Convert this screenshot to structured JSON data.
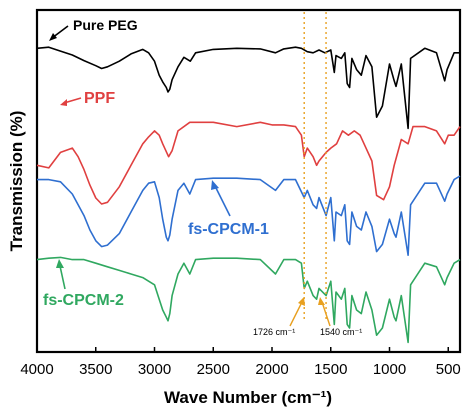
{
  "chart_data": {
    "type": "line",
    "title": "",
    "xlabel": "Wave Number (cm⁻¹)",
    "ylabel": "Transmission (%)",
    "xlim": [
      4000,
      400
    ],
    "x_reversed": true,
    "y_ticks_shown": false,
    "grid": false,
    "x_ticks": [
      4000,
      3500,
      3000,
      2500,
      2000,
      1500,
      1000,
      500
    ],
    "x_tick_labels": [
      "4000",
      "3500",
      "3000",
      "2500",
      "2000",
      "1500",
      "1000",
      "500"
    ],
    "series": [
      {
        "name": "Pure PEG",
        "color": "#000000",
        "points": [
          [
            4000,
            0.22
          ],
          [
            3900,
            0.2
          ],
          [
            3800,
            0.27
          ],
          [
            3700,
            0.34
          ],
          [
            3600,
            0.44
          ],
          [
            3500,
            0.53
          ],
          [
            3450,
            0.58
          ],
          [
            3400,
            0.55
          ],
          [
            3300,
            0.45
          ],
          [
            3200,
            0.32
          ],
          [
            3100,
            0.24
          ],
          [
            3050,
            0.3
          ],
          [
            3000,
            0.45
          ],
          [
            2960,
            0.7
          ],
          [
            2930,
            0.82
          ],
          [
            2900,
            0.92
          ],
          [
            2885,
            1.0
          ],
          [
            2870,
            0.95
          ],
          [
            2850,
            0.78
          ],
          [
            2800,
            0.55
          ],
          [
            2750,
            0.38
          ],
          [
            2695,
            0.45
          ],
          [
            2650,
            0.3
          ],
          [
            2500,
            0.24
          ],
          [
            2300,
            0.22
          ],
          [
            2100,
            0.23
          ],
          [
            1970,
            0.3
          ],
          [
            1900,
            0.23
          ],
          [
            1800,
            0.2
          ],
          [
            1750,
            0.22
          ],
          [
            1700,
            0.28
          ],
          [
            1650,
            0.3
          ],
          [
            1600,
            0.25
          ],
          [
            1550,
            0.3
          ],
          [
            1500,
            0.25
          ],
          [
            1470,
            0.65
          ],
          [
            1455,
            0.35
          ],
          [
            1410,
            0.4
          ],
          [
            1380,
            0.3
          ],
          [
            1360,
            0.85
          ],
          [
            1340,
            0.92
          ],
          [
            1320,
            0.4
          ],
          [
            1280,
            0.6
          ],
          [
            1240,
            0.7
          ],
          [
            1200,
            0.35
          ],
          [
            1150,
            0.55
          ],
          [
            1110,
            1.45
          ],
          [
            1060,
            1.25
          ],
          [
            1000,
            0.5
          ],
          [
            960,
            0.8
          ],
          [
            945,
            0.9
          ],
          [
            900,
            0.5
          ],
          [
            842,
            1.65
          ],
          [
            820,
            0.4
          ],
          [
            700,
            0.22
          ],
          [
            600,
            0.3
          ],
          [
            530,
            0.8
          ],
          [
            510,
            0.6
          ],
          [
            450,
            0.3
          ],
          [
            400,
            0.3
          ]
        ]
      },
      {
        "name": "PPF",
        "color": "#e04040",
        "points": [
          [
            4000,
            0.55
          ],
          [
            3900,
            0.58
          ],
          [
            3800,
            0.4
          ],
          [
            3700,
            0.35
          ],
          [
            3650,
            0.45
          ],
          [
            3600,
            0.6
          ],
          [
            3550,
            0.78
          ],
          [
            3500,
            0.93
          ],
          [
            3450,
            1.0
          ],
          [
            3400,
            0.98
          ],
          [
            3300,
            0.8
          ],
          [
            3200,
            0.55
          ],
          [
            3100,
            0.3
          ],
          [
            3050,
            0.22
          ],
          [
            3000,
            0.15
          ],
          [
            2960,
            0.2
          ],
          [
            2930,
            0.3
          ],
          [
            2880,
            0.45
          ],
          [
            2850,
            0.38
          ],
          [
            2800,
            0.15
          ],
          [
            2700,
            0.05
          ],
          [
            2500,
            0.05
          ],
          [
            2300,
            0.1
          ],
          [
            2100,
            0.05
          ],
          [
            2000,
            0.08
          ],
          [
            1900,
            0.08
          ],
          [
            1800,
            0.1
          ],
          [
            1750,
            0.2
          ],
          [
            1726,
            0.45
          ],
          [
            1700,
            0.35
          ],
          [
            1650,
            0.45
          ],
          [
            1620,
            0.55
          ],
          [
            1600,
            0.5
          ],
          [
            1540,
            0.4
          ],
          [
            1500,
            0.35
          ],
          [
            1450,
            0.3
          ],
          [
            1400,
            0.15
          ],
          [
            1350,
            0.2
          ],
          [
            1300,
            0.15
          ],
          [
            1250,
            0.2
          ],
          [
            1200,
            0.35
          ],
          [
            1150,
            0.5
          ],
          [
            1110,
            0.9
          ],
          [
            1050,
            0.95
          ],
          [
            1000,
            0.8
          ],
          [
            960,
            0.55
          ],
          [
            900,
            0.25
          ],
          [
            842,
            0.3
          ],
          [
            800,
            0.1
          ],
          [
            700,
            0.1
          ],
          [
            600,
            0.15
          ],
          [
            530,
            0.3
          ],
          [
            500,
            0.2
          ],
          [
            450,
            0.2
          ],
          [
            400,
            0.1
          ]
        ]
      },
      {
        "name": "fs-CPCM-1",
        "color": "#2f6fd0",
        "points": [
          [
            4000,
            0.05
          ],
          [
            3900,
            0.05
          ],
          [
            3800,
            0.08
          ],
          [
            3700,
            0.25
          ],
          [
            3600,
            0.55
          ],
          [
            3550,
            0.75
          ],
          [
            3500,
            0.9
          ],
          [
            3450,
            0.98
          ],
          [
            3400,
            0.96
          ],
          [
            3300,
            0.8
          ],
          [
            3200,
            0.5
          ],
          [
            3100,
            0.2
          ],
          [
            3050,
            0.1
          ],
          [
            3000,
            0.08
          ],
          [
            2960,
            0.3
          ],
          [
            2930,
            0.6
          ],
          [
            2900,
            0.85
          ],
          [
            2885,
            0.9
          ],
          [
            2870,
            0.82
          ],
          [
            2850,
            0.6
          ],
          [
            2800,
            0.2
          ],
          [
            2750,
            0.1
          ],
          [
            2700,
            0.25
          ],
          [
            2650,
            0.05
          ],
          [
            2500,
            0.03
          ],
          [
            2300,
            0.03
          ],
          [
            2100,
            0.05
          ],
          [
            1970,
            0.2
          ],
          [
            1900,
            0.05
          ],
          [
            1800,
            0.05
          ],
          [
            1726,
            0.3
          ],
          [
            1700,
            0.2
          ],
          [
            1650,
            0.4
          ],
          [
            1620,
            0.45
          ],
          [
            1600,
            0.3
          ],
          [
            1540,
            0.55
          ],
          [
            1500,
            0.3
          ],
          [
            1470,
            0.9
          ],
          [
            1455,
            0.5
          ],
          [
            1410,
            0.55
          ],
          [
            1380,
            0.4
          ],
          [
            1360,
            0.9
          ],
          [
            1340,
            0.95
          ],
          [
            1320,
            0.5
          ],
          [
            1280,
            0.7
          ],
          [
            1240,
            0.75
          ],
          [
            1200,
            0.5
          ],
          [
            1150,
            0.7
          ],
          [
            1110,
            1.05
          ],
          [
            1060,
            0.95
          ],
          [
            1000,
            0.6
          ],
          [
            960,
            0.8
          ],
          [
            945,
            0.85
          ],
          [
            900,
            0.5
          ],
          [
            842,
            1.1
          ],
          [
            820,
            0.4
          ],
          [
            700,
            0.1
          ],
          [
            600,
            0.1
          ],
          [
            530,
            0.35
          ],
          [
            510,
            0.25
          ],
          [
            450,
            0.05
          ],
          [
            400,
            0.0
          ]
        ]
      },
      {
        "name": "fs-CPCM-2",
        "color": "#30a860",
        "points": [
          [
            4000,
            0.05
          ],
          [
            3900,
            0.03
          ],
          [
            3800,
            0.02
          ],
          [
            3700,
            0.05
          ],
          [
            3600,
            0.05
          ],
          [
            3500,
            0.1
          ],
          [
            3400,
            0.15
          ],
          [
            3300,
            0.2
          ],
          [
            3200,
            0.25
          ],
          [
            3100,
            0.3
          ],
          [
            3050,
            0.35
          ],
          [
            3000,
            0.4
          ],
          [
            2960,
            0.6
          ],
          [
            2930,
            0.75
          ],
          [
            2900,
            0.85
          ],
          [
            2885,
            0.9
          ],
          [
            2870,
            0.8
          ],
          [
            2850,
            0.55
          ],
          [
            2800,
            0.25
          ],
          [
            2750,
            0.1
          ],
          [
            2700,
            0.25
          ],
          [
            2650,
            0.05
          ],
          [
            2500,
            0.03
          ],
          [
            2300,
            0.03
          ],
          [
            2100,
            0.05
          ],
          [
            1970,
            0.25
          ],
          [
            1900,
            0.05
          ],
          [
            1800,
            0.05
          ],
          [
            1750,
            0.1
          ],
          [
            1726,
            0.45
          ],
          [
            1700,
            0.35
          ],
          [
            1650,
            0.55
          ],
          [
            1620,
            0.6
          ],
          [
            1600,
            0.45
          ],
          [
            1540,
            0.55
          ],
          [
            1500,
            0.35
          ],
          [
            1470,
            0.95
          ],
          [
            1455,
            0.5
          ],
          [
            1410,
            0.6
          ],
          [
            1380,
            0.45
          ],
          [
            1360,
            0.95
          ],
          [
            1340,
            1.0
          ],
          [
            1320,
            0.55
          ],
          [
            1280,
            0.75
          ],
          [
            1240,
            0.8
          ],
          [
            1200,
            0.5
          ],
          [
            1150,
            0.75
          ],
          [
            1110,
            1.1
          ],
          [
            1060,
            1.0
          ],
          [
            1000,
            0.6
          ],
          [
            960,
            0.85
          ],
          [
            945,
            0.9
          ],
          [
            900,
            0.55
          ],
          [
            842,
            1.2
          ],
          [
            820,
            0.4
          ],
          [
            700,
            0.1
          ],
          [
            600,
            0.15
          ],
          [
            530,
            0.4
          ],
          [
            510,
            0.3
          ],
          [
            450,
            0.1
          ],
          [
            400,
            0.05
          ]
        ]
      }
    ],
    "annotations": [
      {
        "text": "1726 cm⁻¹",
        "x": 1726
      },
      {
        "text": "1540 cm⁻¹",
        "x": 1540
      }
    ],
    "marker_color": "#e8a020"
  }
}
